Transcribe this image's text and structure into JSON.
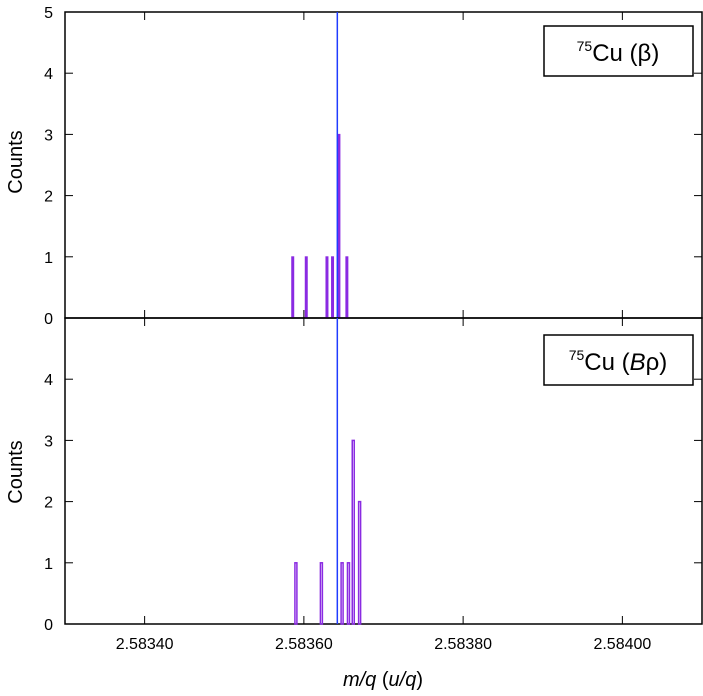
{
  "chart_data": [
    {
      "type": "bar",
      "panel": "top",
      "label": {
        "sup": "75",
        "element": "Cu (",
        "symbol": "β",
        "close": ")"
      },
      "ylabel": "Counts",
      "xlim": [
        2.5833,
        2.5841
      ],
      "ylim": [
        0,
        5
      ],
      "yticks": [
        "0",
        "1",
        "2",
        "3",
        "4",
        "5"
      ],
      "bar_style": "filled",
      "bars": [
        {
          "x": 2.583586,
          "count": 1
        },
        {
          "x": 2.583603,
          "count": 1
        },
        {
          "x": 2.583629,
          "count": 1
        },
        {
          "x": 2.583636,
          "count": 1
        },
        {
          "x": 2.583644,
          "count": 3
        },
        {
          "x": 2.583654,
          "count": 1
        }
      ],
      "reference_x": 2.583642
    },
    {
      "type": "bar",
      "panel": "bottom",
      "label": {
        "sup": "75",
        "element": "Cu (",
        "symbol_italic": "B",
        "symbol": "ρ",
        "close": ")"
      },
      "ylabel": "Counts",
      "xlabel": {
        "italic_a": "m/q",
        "plain": " (",
        "italic_b": "u/q",
        "close": ")"
      },
      "xlim": [
        2.5833,
        2.5841
      ],
      "ylim": [
        0,
        5
      ],
      "yticks": [
        "0",
        "1",
        "2",
        "3",
        "4"
      ],
      "xticks": [
        "2.58340",
        "2.58360",
        "2.58380",
        "2.58400"
      ],
      "xtick_values": [
        2.5834,
        2.5836,
        2.5838,
        2.584
      ],
      "bar_style": "outline",
      "bars": [
        {
          "x": 2.58359,
          "count": 1
        },
        {
          "x": 2.583622,
          "count": 1
        },
        {
          "x": 2.583648,
          "count": 1
        },
        {
          "x": 2.583656,
          "count": 1
        },
        {
          "x": 2.583662,
          "count": 3
        },
        {
          "x": 2.58367,
          "count": 2
        }
      ],
      "reference_x": 2.583642
    }
  ],
  "colors": {
    "bar": "#8a2be2",
    "reference": "#1f3cff",
    "axis": "#000000"
  }
}
